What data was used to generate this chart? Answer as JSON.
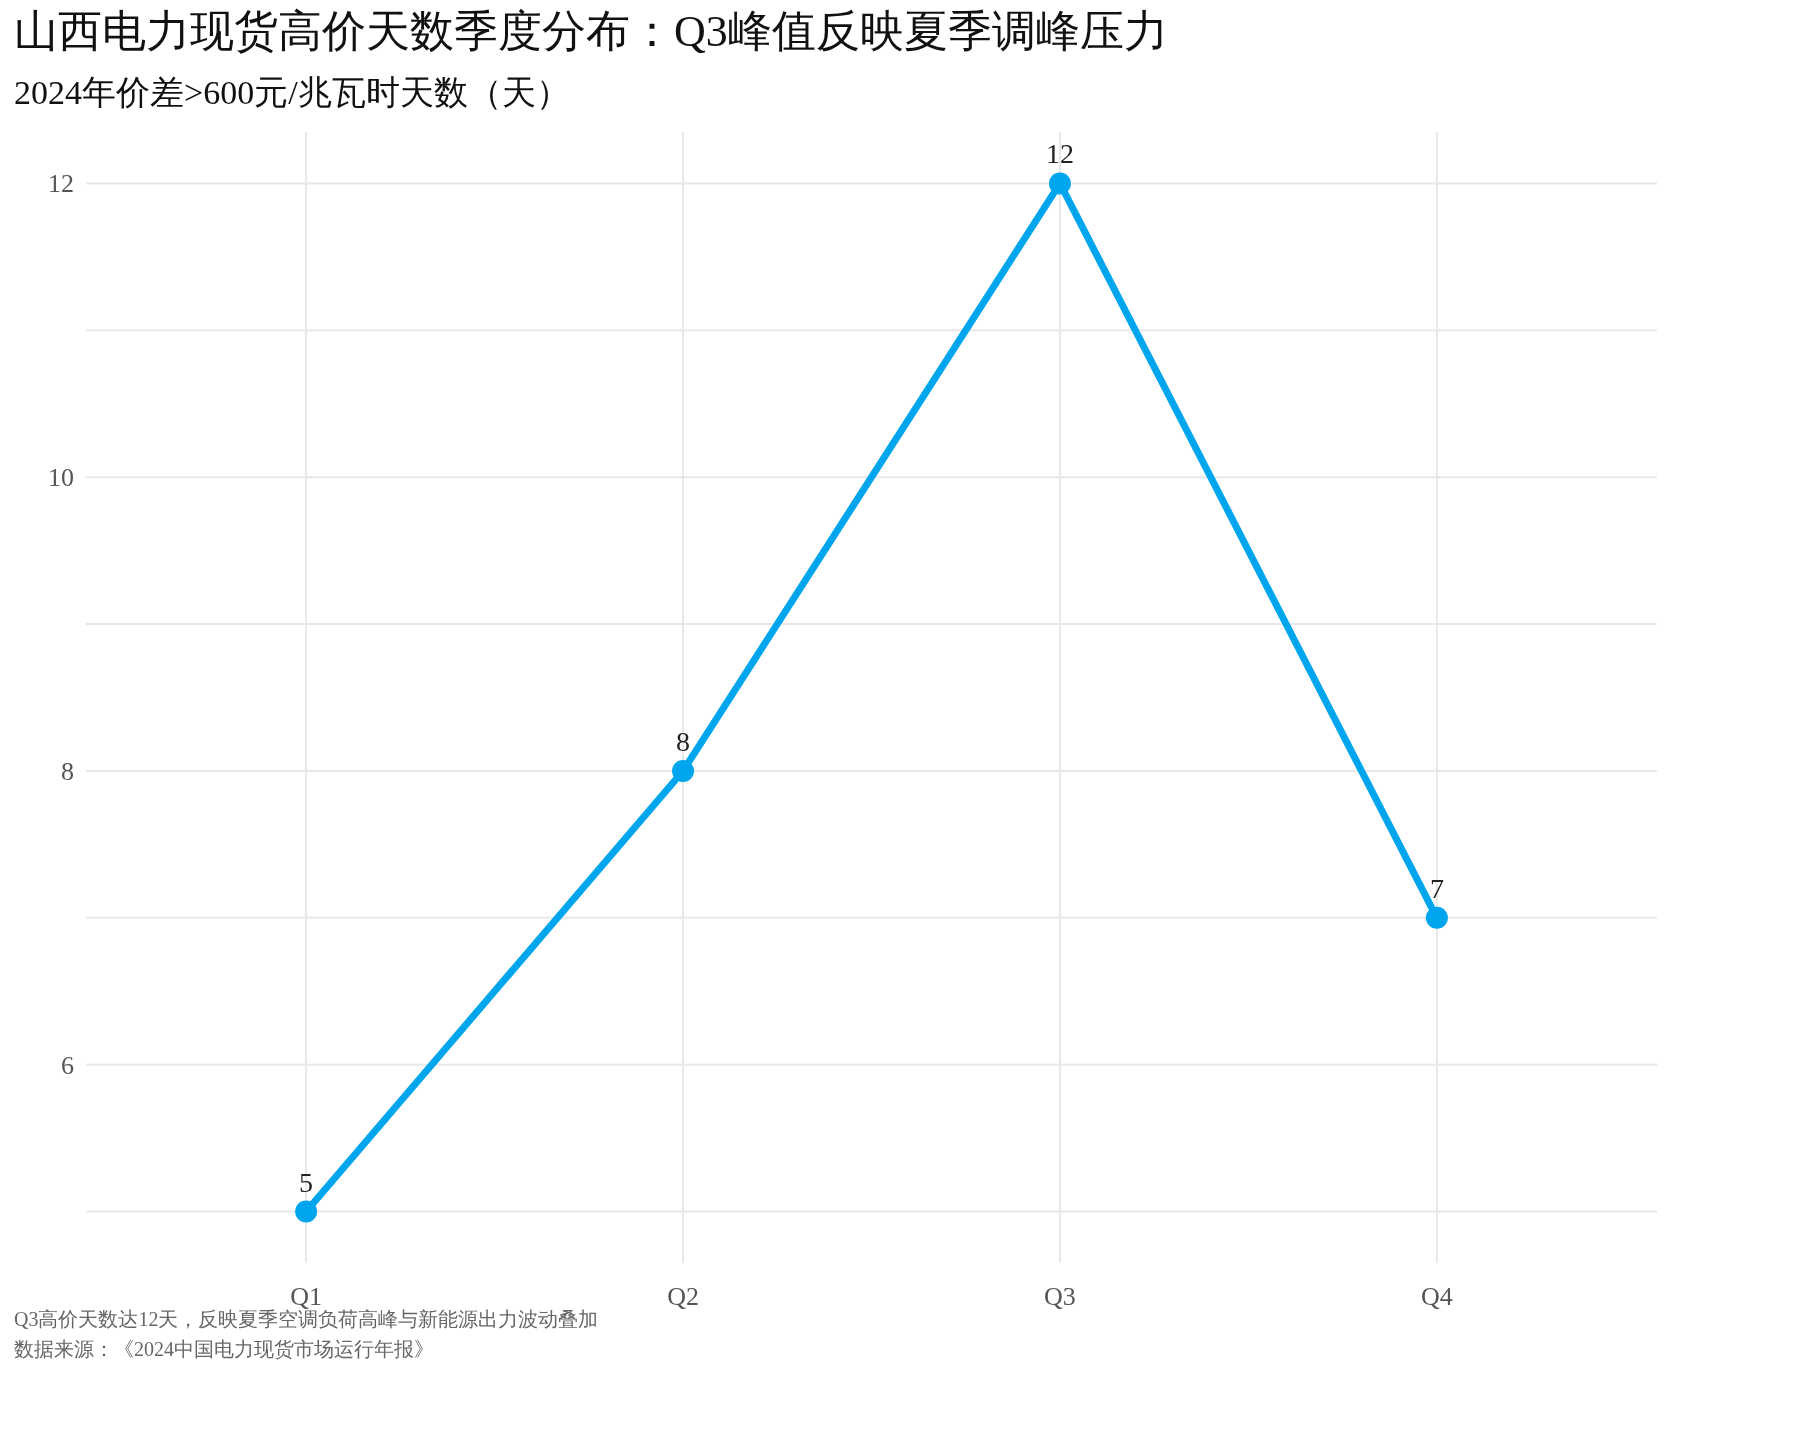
{
  "chart_data": {
    "type": "line",
    "title": "山西电力现货高价天数季度分布：Q3峰值反映夏季调峰压力",
    "subtitle": "2024年价差>600元/兆瓦时天数（天）",
    "categories": [
      "Q1",
      "Q2",
      "Q3",
      "Q4"
    ],
    "series": [
      {
        "color": "#00a6ed",
        "values": [
          5,
          8,
          12,
          7
        ]
      }
    ],
    "ylim": [
      4.65,
      12.35
    ],
    "yticks": [
      {
        "value": 5,
        "label": null
      },
      6,
      {
        "value": 7,
        "label": null
      },
      8,
      {
        "value": 9,
        "label": null
      },
      10,
      {
        "value": 11,
        "label": null
      },
      12
    ],
    "grid": true,
    "marker": "circle",
    "line_style": "solid",
    "data_labels": true,
    "annotations": [
      "Q3高价天数达12天，反映夏季空调负荷高峰与新能源出力波动叠加",
      "数据来源：《2024中国电力现货市场运行年报》"
    ]
  }
}
